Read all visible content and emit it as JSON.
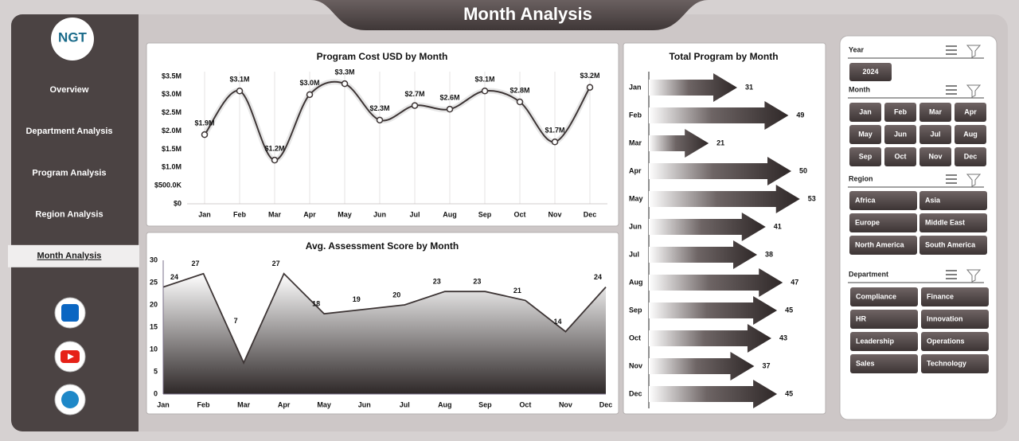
{
  "page": {
    "title": "Month Analysis",
    "logo": "NGT",
    "nav": [
      "Overview",
      "Department Analysis",
      "Program  Analysis",
      "Region Analysis",
      "Month Analysis"
    ],
    "active_nav": 4
  },
  "slicers": [
    {
      "title": "Year",
      "items": [
        "2024"
      ]
    },
    {
      "title": "Month",
      "items": [
        "Jan",
        "Feb",
        "Mar",
        "Apr",
        "May",
        "Jun",
        "Jul",
        "Aug",
        "Sep",
        "Oct",
        "Nov",
        "Dec"
      ]
    },
    {
      "title": "Region",
      "items": [
        "Africa",
        "Asia",
        "Europe",
        "Middle East",
        "North America",
        "South America"
      ]
    },
    {
      "title": "Department",
      "items": [
        "Compliance",
        "Finance",
        "HR",
        "Innovation",
        "Leadership",
        "Operations",
        "Sales",
        "Technology"
      ]
    }
  ],
  "chart_data": [
    {
      "type": "line",
      "title": "Program Cost USD by Month",
      "smooth": true,
      "color": "#3d3535",
      "categories": [
        "Jan",
        "Feb",
        "Mar",
        "Apr",
        "May",
        "Jun",
        "Jul",
        "Aug",
        "Sep",
        "Oct",
        "Nov",
        "Dec"
      ],
      "values": [
        1900000,
        3100000,
        1200000,
        3000000,
        3300000,
        2300000,
        2700000,
        2600000,
        3100000,
        2800000,
        1700000,
        3200000
      ],
      "value_labels": [
        "$1.9M",
        "$3.1M",
        "$1.2M",
        "$3.0M",
        "$3.3M",
        "$2.3M",
        "$2.7M",
        "$2.6M",
        "$3.1M",
        "$2.8M",
        "$1.7M",
        "$3.2M"
      ],
      "ylim": [
        0,
        3500000
      ],
      "yticks": [
        {
          "value": 0,
          "label": "$0"
        },
        {
          "value": 500000,
          "label": "$500.0K"
        },
        {
          "value": 1000000,
          "label": "$1.0M"
        },
        {
          "value": 1500000,
          "label": "$1.5M"
        },
        {
          "value": 2000000,
          "label": "$2.0M"
        },
        {
          "value": 2500000,
          "label": "$2.5M"
        },
        {
          "value": 3000000,
          "label": "$3.0M"
        },
        {
          "value": 3500000,
          "label": "$3.5M"
        }
      ]
    },
    {
      "type": "area",
      "title": "Avg. Assessment Score by Month",
      "color": "#3d3535",
      "categories": [
        "Jan",
        "Feb",
        "Mar",
        "Apr",
        "May",
        "Jun",
        "Jul",
        "Aug",
        "Sep",
        "Oct",
        "Nov",
        "Dec"
      ],
      "values": [
        24,
        27,
        7,
        27,
        18,
        19,
        20,
        23,
        23,
        21,
        14,
        24
      ],
      "ylim": [
        0,
        30
      ],
      "yticks": [
        0,
        5,
        10,
        15,
        20,
        25,
        30
      ]
    },
    {
      "type": "arrow-bar",
      "title": "Total Program by Month",
      "color": "#3a3232",
      "categories": [
        "Jan",
        "Feb",
        "Mar",
        "Apr",
        "May",
        "Jun",
        "Jul",
        "Aug",
        "Sep",
        "Oct",
        "Nov",
        "Dec"
      ],
      "values": [
        31,
        49,
        21,
        50,
        53,
        41,
        38,
        47,
        45,
        43,
        37,
        45
      ]
    }
  ]
}
